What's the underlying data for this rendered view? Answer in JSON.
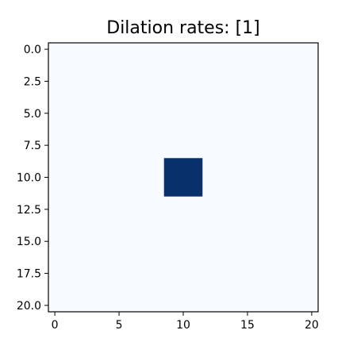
{
  "chart_data": {
    "type": "heatmap",
    "title": "Dilation rates: [1]",
    "xlabel": "",
    "ylabel": "",
    "grid": false,
    "colormap": "Blues",
    "color_low": "#f7fbff",
    "color_high": "#08306b",
    "rows": 21,
    "cols": 21,
    "xlim": [
      -0.5,
      20.5
    ],
    "ylim": [
      20.5,
      -0.5
    ],
    "x_ticks": [
      0,
      5,
      10,
      15,
      20
    ],
    "x_tick_labels": [
      "0",
      "5",
      "10",
      "15",
      "20"
    ],
    "y_ticks": [
      0,
      2.5,
      5,
      7.5,
      10,
      12.5,
      15,
      17.5,
      20
    ],
    "y_tick_labels": [
      "0.0",
      "2.5",
      "5.0",
      "7.5",
      "10.0",
      "12.5",
      "15.0",
      "17.5",
      "20.0"
    ],
    "background_value": 0,
    "highlight": {
      "value": 1,
      "row_start": 9,
      "row_end": 11,
      "col_start": 9,
      "col_end": 11
    }
  }
}
